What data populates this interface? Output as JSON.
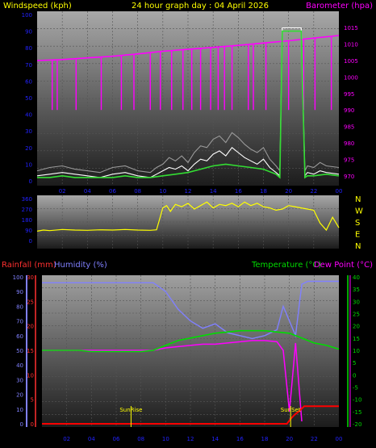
{
  "title": "24 hour graph day : 04 April 2026",
  "colors": {
    "wind": "#ffffff",
    "gust": "#9a9a9a",
    "avg_wind": "#33dd33",
    "barometer": "#ff00ff",
    "direction": "#ffff00",
    "humidity": "#8080ff",
    "temperature": "#00dd00",
    "dewpoint": "#ff00ff",
    "rain": "#ff0000",
    "sun": "#ffff00",
    "rain_axis": "#ff3030",
    "hum_axis": "#8080ff",
    "tick_text": "#2222ff"
  },
  "chart_data": [
    {
      "id": "wind-baro",
      "type": "line",
      "ylabel_left": "Windspeed (kph)",
      "ylabel_right": "Barometer (hpa)",
      "ylim_left": [
        0,
        100
      ],
      "ylim_right": [
        970,
        1017
      ],
      "x_ticks": [
        "02",
        "04",
        "06",
        "08",
        "10",
        "12",
        "14",
        "16",
        "18",
        "20",
        "22",
        "00"
      ],
      "y_ticks_left": [
        "0",
        "10",
        "20",
        "30",
        "40",
        "50",
        "60",
        "70",
        "80",
        "90",
        "100"
      ],
      "y_ticks_right": [
        "970",
        "975",
        "980",
        "985",
        "990",
        "995",
        "1000",
        "1005",
        "1010",
        "1015"
      ],
      "series": [
        {
          "key": "wind",
          "x": [
            0,
            1,
            2,
            3,
            4,
            5,
            6,
            7,
            8,
            9,
            9.5,
            10,
            10.5,
            11,
            11.5,
            12,
            12.5,
            13,
            13.5,
            14,
            14.5,
            15,
            15.5,
            16,
            16.5,
            17,
            17.5,
            18,
            18.5,
            19,
            19.3,
            19.5,
            20,
            20.5,
            21,
            21.3,
            21.5,
            22,
            22.5,
            23,
            24
          ],
          "values": [
            3,
            4,
            5,
            4,
            3,
            2,
            4,
            5,
            3,
            2,
            4,
            6,
            8,
            7,
            9,
            6,
            10,
            13,
            12,
            16,
            18,
            15,
            20,
            17,
            14,
            12,
            10,
            13,
            8,
            5,
            3,
            92,
            92,
            92,
            92,
            3,
            5,
            4,
            6,
            5,
            4
          ]
        },
        {
          "key": "gust",
          "x": [
            0,
            1,
            2,
            3,
            4,
            5,
            6,
            7,
            8,
            9,
            9.5,
            10,
            10.5,
            11,
            11.5,
            12,
            12.5,
            13,
            13.5,
            14,
            14.5,
            15,
            15.5,
            16,
            16.5,
            17,
            17.5,
            18,
            18.5,
            19,
            19.3,
            19.5,
            20,
            20.5,
            21,
            21.3,
            21.5,
            22,
            22.5,
            23,
            24
          ],
          "values": [
            6,
            8,
            9,
            7,
            6,
            5,
            8,
            9,
            6,
            5,
            8,
            10,
            14,
            12,
            15,
            11,
            17,
            21,
            20,
            25,
            27,
            23,
            29,
            26,
            22,
            19,
            17,
            20,
            13,
            9,
            6,
            94,
            94,
            94,
            94,
            6,
            9,
            8,
            11,
            9,
            8
          ]
        },
        {
          "key": "avg_wind",
          "x": [
            0,
            1,
            2,
            3,
            4,
            5,
            6,
            7,
            8,
            9,
            10,
            11,
            12,
            13,
            14,
            15,
            16,
            17,
            18,
            19,
            19.3,
            19.5,
            20,
            20.5,
            21,
            21.3,
            21.5,
            22,
            23,
            24
          ],
          "values": [
            2,
            2,
            3,
            2,
            2,
            2,
            2,
            3,
            2,
            2,
            3,
            4,
            5,
            7,
            9,
            10,
            9,
            8,
            7,
            4,
            2,
            90,
            90,
            90,
            90,
            2,
            3,
            3,
            4,
            3
          ]
        },
        {
          "key": "barometer",
          "x": [
            0,
            2,
            4,
            6,
            8,
            10,
            12,
            14,
            16,
            18,
            20,
            22,
            24
          ],
          "values": [
            1005,
            1005.3,
            1005.8,
            1006.3,
            1007,
            1007.8,
            1008.4,
            1009,
            1009.6,
            1010.3,
            1011,
            1011.8,
            1012.6
          ]
        }
      ],
      "barometer_dips": [
        1.2,
        1.6,
        3.1,
        5.1,
        6.7,
        7.7,
        9.0,
        9.8,
        10.7,
        11.6,
        12.3,
        13.0,
        13.8,
        14.4,
        14.9,
        15.5,
        16.8,
        17.2,
        18.2,
        20.0,
        21.2,
        22.1,
        23.4
      ]
    },
    {
      "id": "direction",
      "type": "line",
      "ylabel_right": "N W S E N",
      "ylim": [
        0,
        360
      ],
      "y_ticks_left": [
        "0",
        "90",
        "180",
        "270",
        "360"
      ],
      "x": [
        0,
        0.5,
        1,
        2,
        3,
        4,
        5,
        6,
        7,
        8,
        9,
        9.5,
        10,
        10.3,
        10.6,
        11,
        11.5,
        12,
        12.5,
        13,
        13.5,
        14,
        14.5,
        15,
        15.5,
        16,
        16.5,
        17,
        17.5,
        18,
        18.5,
        19,
        19.5,
        20,
        20.5,
        21,
        21.5,
        22,
        22.5,
        23,
        23.5,
        24
      ],
      "values": [
        80,
        90,
        85,
        95,
        90,
        88,
        92,
        90,
        95,
        90,
        88,
        92,
        280,
        300,
        250,
        310,
        290,
        320,
        270,
        300,
        330,
        280,
        310,
        300,
        320,
        290,
        330,
        300,
        320,
        290,
        280,
        260,
        270,
        300,
        290,
        280,
        270,
        260,
        150,
        90,
        200,
        110
      ]
    },
    {
      "id": "temp-hum",
      "type": "line",
      "ylabel_left_1": "Rainfall (mm)",
      "ylabel_left_2": "Humidity (%)",
      "ylabel_right_1": "Temperature (°C)",
      "ylabel_right_2": "Dew Point (°C)",
      "ylim_rain": [
        0,
        30
      ],
      "ylim_humidity": [
        0,
        100
      ],
      "ylim_temp": [
        -20,
        40
      ],
      "x_ticks": [
        "02",
        "04",
        "06",
        "08",
        "10",
        "12",
        "14",
        "16",
        "18",
        "20",
        "22",
        "00"
      ],
      "y_ticks_humidity": [
        "0",
        "10",
        "20",
        "30",
        "40",
        "50",
        "60",
        "70",
        "80",
        "90",
        "100"
      ],
      "y_ticks_rain": [
        "0",
        "5",
        "10",
        "15",
        "20",
        "25",
        "30"
      ],
      "y_ticks_temp": [
        "-20",
        "-15",
        "-10",
        "-5",
        "0",
        "5",
        "10",
        "15",
        "20",
        "25",
        "30",
        "35",
        "40"
      ],
      "series": [
        {
          "key": "humidity",
          "x": [
            0,
            1,
            2,
            3,
            4,
            5,
            6,
            7,
            8,
            9,
            10,
            11,
            12,
            13,
            14,
            15,
            16,
            17,
            18,
            19,
            19.5,
            20,
            20.5,
            21,
            21.5,
            22,
            23,
            24
          ],
          "values": [
            96,
            96,
            96,
            96,
            96,
            96,
            96,
            96,
            96,
            96,
            90,
            78,
            70,
            65,
            68,
            62,
            60,
            58,
            60,
            64,
            80,
            70,
            60,
            95,
            97,
            97,
            97,
            97
          ]
        },
        {
          "key": "temperature",
          "x": [
            0,
            1,
            2,
            3,
            4,
            5,
            6,
            7,
            8,
            9,
            10,
            11,
            12,
            13,
            14,
            15,
            16,
            17,
            18,
            19,
            20,
            21,
            22,
            23,
            24
          ],
          "values": [
            10,
            10,
            10,
            10,
            9.5,
            9.5,
            9.5,
            9.5,
            9.5,
            10,
            12,
            14,
            15,
            16,
            17,
            17.5,
            18,
            18,
            18,
            17.5,
            17,
            15,
            13,
            12,
            10.5
          ]
        },
        {
          "key": "dewpoint",
          "x": [
            0,
            9,
            10,
            11,
            12,
            13,
            14,
            15,
            16,
            17,
            18,
            19,
            19.5,
            20,
            20.5,
            21
          ],
          "values": [
            10,
            10,
            11,
            11.5,
            12,
            12.5,
            12.5,
            13,
            13.5,
            14,
            14,
            13.5,
            10,
            -15,
            13,
            -19
          ]
        },
        {
          "key": "rain",
          "x": [
            0,
            19.8,
            20.1,
            20.4,
            20.8,
            21.2,
            24
          ],
          "values": [
            0,
            0,
            1,
            1.8,
            2.6,
            3.6,
            3.6
          ]
        }
      ],
      "annotations": [
        {
          "label": "SunRise",
          "hour": 7.2
        },
        {
          "label": "SunSet",
          "hour": 20.1
        }
      ]
    }
  ]
}
